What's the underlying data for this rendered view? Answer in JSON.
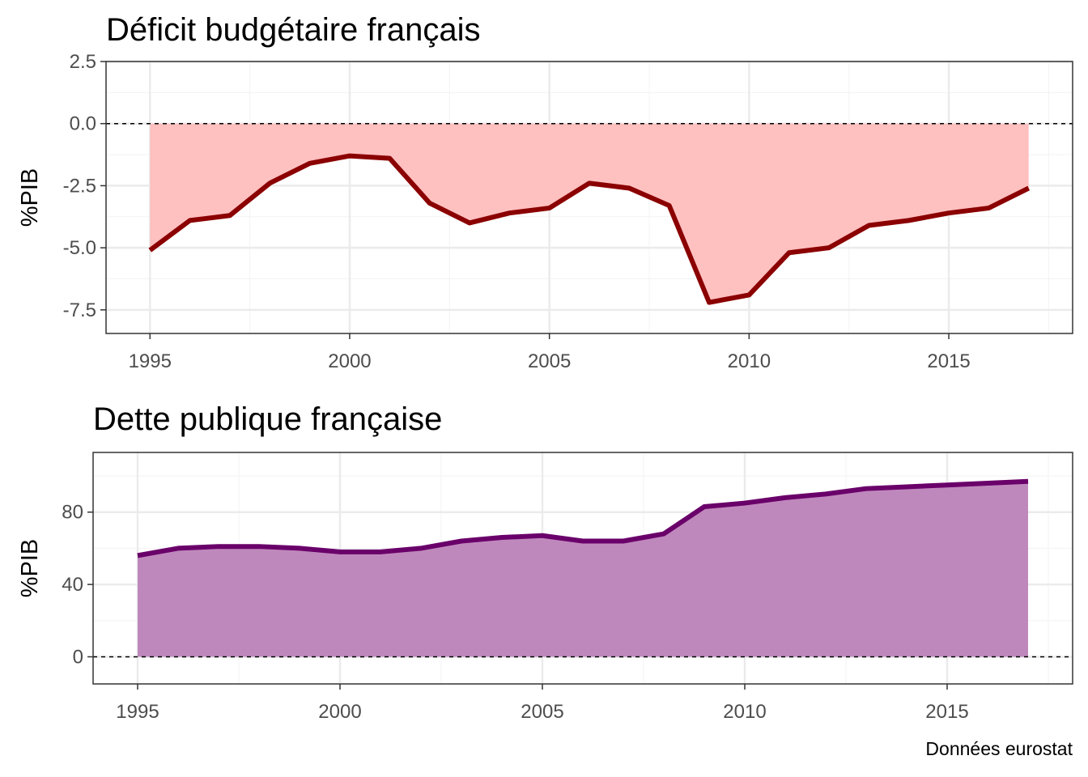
{
  "caption": "Données eurostat",
  "chart_data": [
    {
      "type": "area",
      "title": "Déficit budgétaire français",
      "xlabel": "",
      "ylabel": "%PIB",
      "xlim": [
        1993.9,
        2018.1
      ],
      "ylim": [
        -8.45,
        2.5
      ],
      "x_ticks": [
        "1995",
        "2000",
        "2005",
        "2010",
        "2015"
      ],
      "y_ticks": [
        "2.5",
        "0.0",
        "-2.5",
        "-5.0",
        "-7.5"
      ],
      "reference_line": 0,
      "grid": true,
      "line_color": "#8b0000",
      "fill_color": "#ffc0c0",
      "x": [
        1995,
        1996,
        1997,
        1998,
        1999,
        2000,
        2001,
        2002,
        2003,
        2004,
        2005,
        2006,
        2007,
        2008,
        2009,
        2010,
        2011,
        2012,
        2013,
        2014,
        2015,
        2016,
        2017
      ],
      "values": [
        -5.1,
        -3.9,
        -3.7,
        -2.4,
        -1.6,
        -1.3,
        -1.4,
        -3.2,
        -4.0,
        -3.6,
        -3.4,
        -2.4,
        -2.6,
        -3.3,
        -7.2,
        -6.9,
        -5.2,
        -5.0,
        -4.1,
        -3.9,
        -3.6,
        -3.4,
        -2.6
      ]
    },
    {
      "type": "area",
      "title": "Dette publique française",
      "xlabel": "",
      "ylabel": "%PIB",
      "xlim": [
        1993.9,
        2018.1
      ],
      "ylim": [
        -15,
        113
      ],
      "x_ticks": [
        "1995",
        "2000",
        "2005",
        "2010",
        "2015"
      ],
      "y_ticks": [
        "80",
        "40",
        "0"
      ],
      "reference_line": 0,
      "grid": true,
      "line_color": "#6a006a",
      "fill_color": "#bf88bc",
      "x": [
        1995,
        1996,
        1997,
        1998,
        1999,
        2000,
        2001,
        2002,
        2003,
        2004,
        2005,
        2006,
        2007,
        2008,
        2009,
        2010,
        2011,
        2012,
        2013,
        2014,
        2015,
        2016,
        2017
      ],
      "values": [
        56,
        60,
        61,
        61,
        60,
        58,
        58,
        60,
        64,
        66,
        67,
        64,
        64,
        68,
        83,
        85,
        88,
        90,
        93,
        94,
        95,
        96,
        97
      ]
    }
  ]
}
